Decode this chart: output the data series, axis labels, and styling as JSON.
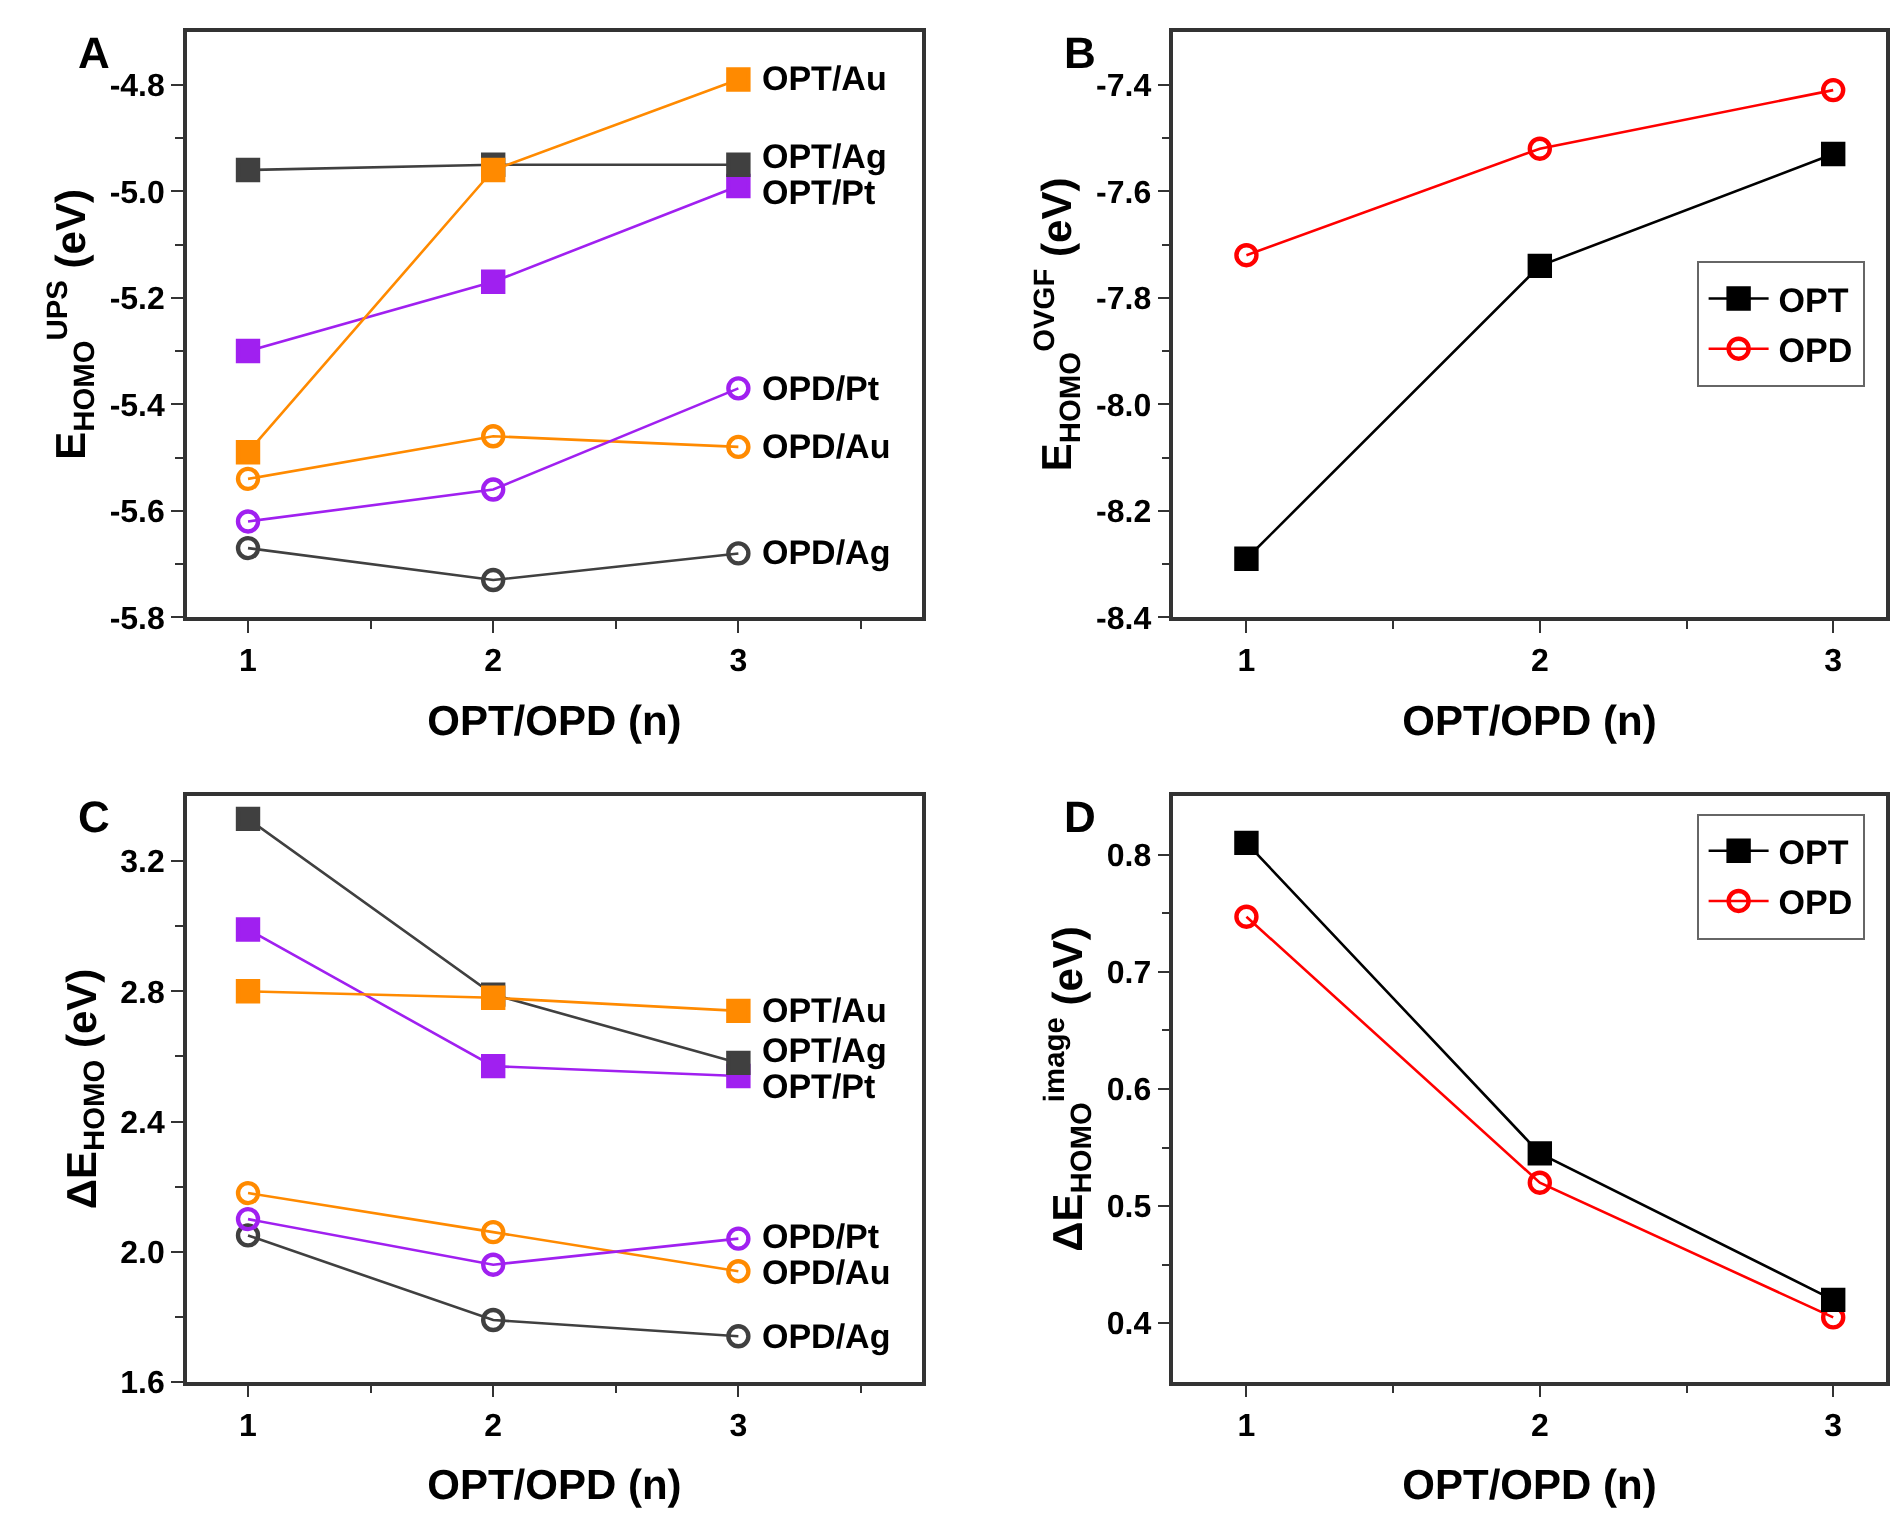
{
  "chart_data": [
    {
      "type": "line",
      "title": "A",
      "xlabel": "OPT/OPD (n)",
      "ylabel": "E$_{HOMO}$$^{UPS}$ (eV)",
      "x": [
        1,
        2,
        3
      ],
      "xlim": [
        0.75,
        3.75
      ],
      "xticks": [
        1,
        {
          "value": 1.5,
          "label": null
        },
        2,
        {
          "value": 2.5,
          "label": null
        },
        3,
        {
          "value": 3.5,
          "label": null
        }
      ],
      "ylim": [
        -5.8,
        -4.7
      ],
      "yticks": [
        -5.8,
        {
          "value": -5.7,
          "label": null
        },
        -5.6,
        {
          "value": -5.5,
          "label": null
        },
        -5.4,
        {
          "value": -5.3,
          "label": null
        },
        -5.2,
        {
          "value": -5.1,
          "label": null
        },
        {
          "value": -5.0,
          "label": "-5.0"
        },
        {
          "value": -4.9,
          "label": null
        },
        -4.8
      ],
      "legend": false,
      "series": [
        {
          "name": "OPT/Au",
          "color": "#ff8a00",
          "marker": "square",
          "values": [
            -5.49,
            -4.96,
            -4.79
          ]
        },
        {
          "name": "OPT/Ag",
          "color": "#404040",
          "marker": "square",
          "values": [
            -4.96,
            -4.95,
            -4.95
          ]
        },
        {
          "name": "OPT/Pt",
          "color": "#a020f0",
          "marker": "square",
          "values": [
            -5.3,
            -5.17,
            -4.99
          ]
        },
        {
          "name": "OPD/Pt",
          "color": "#a020f0",
          "marker": "circle",
          "values": [
            -5.62,
            -5.56,
            -5.37
          ]
        },
        {
          "name": "OPD/Au",
          "color": "#ff8a00",
          "marker": "circle",
          "values": [
            -5.54,
            -5.46,
            -5.48
          ]
        },
        {
          "name": "OPD/Ag",
          "color": "#404040",
          "marker": "circle",
          "values": [
            -5.67,
            -5.73,
            -5.68
          ]
        }
      ]
    },
    {
      "type": "line",
      "title": "B",
      "xlabel": "OPT/OPD (n)",
      "ylabel": "E$_{HOMO}$$^{OVGF}$ (eV)",
      "x": [
        1,
        2,
        3
      ],
      "xlim": [
        0.75,
        3.18
      ],
      "xticks": [
        1,
        {
          "value": 1.5,
          "label": null
        },
        2,
        {
          "value": 2.5,
          "label": null
        },
        3
      ],
      "ylim": [
        -8.4,
        -7.3
      ],
      "yticks": [
        -8.4,
        {
          "value": -8.3,
          "label": null
        },
        -8.2,
        {
          "value": -8.1,
          "label": null
        },
        {
          "value": -8.0,
          "label": "-8.0"
        },
        {
          "value": -7.9,
          "label": null
        },
        -7.8,
        {
          "value": -7.7,
          "label": null
        },
        -7.6,
        {
          "value": -7.5,
          "label": null
        },
        -7.4
      ],
      "legend": "right",
      "series": [
        {
          "name": "OPT",
          "color": "#000000",
          "marker": "square",
          "values": [
            -8.29,
            -7.74,
            -7.53
          ]
        },
        {
          "name": "OPD",
          "color": "#ff0000",
          "marker": "circle",
          "values": [
            -7.72,
            -7.52,
            -7.41
          ]
        }
      ]
    },
    {
      "type": "line",
      "title": "C",
      "xlabel": "OPT/OPD (n)",
      "ylabel": "ΔE$_{HOMO}$ (eV)",
      "x": [
        1,
        2,
        3
      ],
      "xlim": [
        0.75,
        3.75
      ],
      "xticks": [
        1,
        {
          "value": 1.5,
          "label": null
        },
        2,
        {
          "value": 2.5,
          "label": null
        },
        3,
        {
          "value": 3.5,
          "label": null
        }
      ],
      "ylim": [
        1.6,
        3.4
      ],
      "yticks": [
        1.6,
        {
          "value": 1.8,
          "label": null
        },
        {
          "value": 2.0,
          "label": "2.0"
        },
        {
          "value": 2.2,
          "label": null
        },
        2.4,
        {
          "value": 2.6,
          "label": null
        },
        2.8,
        {
          "value": 3.0,
          "label": null
        },
        3.2
      ],
      "legend": false,
      "series": [
        {
          "name": "OPT/Au",
          "color": "#ff8a00",
          "marker": "square",
          "values": [
            2.8,
            2.78,
            2.74
          ]
        },
        {
          "name": "OPT/Ag",
          "color": "#404040",
          "marker": "square",
          "values": [
            3.33,
            2.79,
            2.58
          ]
        },
        {
          "name": "OPT/Pt",
          "color": "#a020f0",
          "marker": "square",
          "values": [
            2.99,
            2.57,
            2.54
          ]
        },
        {
          "name": "OPD/Pt",
          "color": "#a020f0",
          "marker": "circle",
          "values": [
            2.1,
            1.96,
            2.04
          ]
        },
        {
          "name": "OPD/Au",
          "color": "#ff8a00",
          "marker": "circle",
          "values": [
            2.18,
            2.06,
            1.94
          ]
        },
        {
          "name": "OPD/Ag",
          "color": "#404040",
          "marker": "circle",
          "values": [
            2.05,
            1.79,
            1.74
          ]
        }
      ]
    },
    {
      "type": "line",
      "title": "D",
      "xlabel": "OPT/OPD (n)",
      "ylabel": "ΔE$_{HOMO}$$^{image}$ (eV)",
      "x": [
        1,
        2,
        3
      ],
      "xlim": [
        0.75,
        3.18
      ],
      "xticks": [
        1,
        {
          "value": 1.5,
          "label": null
        },
        2,
        {
          "value": 2.5,
          "label": null
        },
        3
      ],
      "ylim": [
        0.35,
        0.85
      ],
      "yticks": [
        0.4,
        {
          "value": 0.45,
          "label": null
        },
        0.5,
        {
          "value": 0.55,
          "label": null
        },
        0.6,
        {
          "value": 0.65,
          "label": null
        },
        0.7,
        {
          "value": 0.75,
          "label": null
        },
        0.8
      ],
      "legend": "top right",
      "series": [
        {
          "name": "OPT",
          "color": "#000000",
          "marker": "square",
          "values": [
            0.81,
            0.545,
            0.42
          ]
        },
        {
          "name": "OPD",
          "color": "#ff0000",
          "marker": "circle",
          "values": [
            0.747,
            0.52,
            0.405
          ]
        }
      ]
    }
  ]
}
